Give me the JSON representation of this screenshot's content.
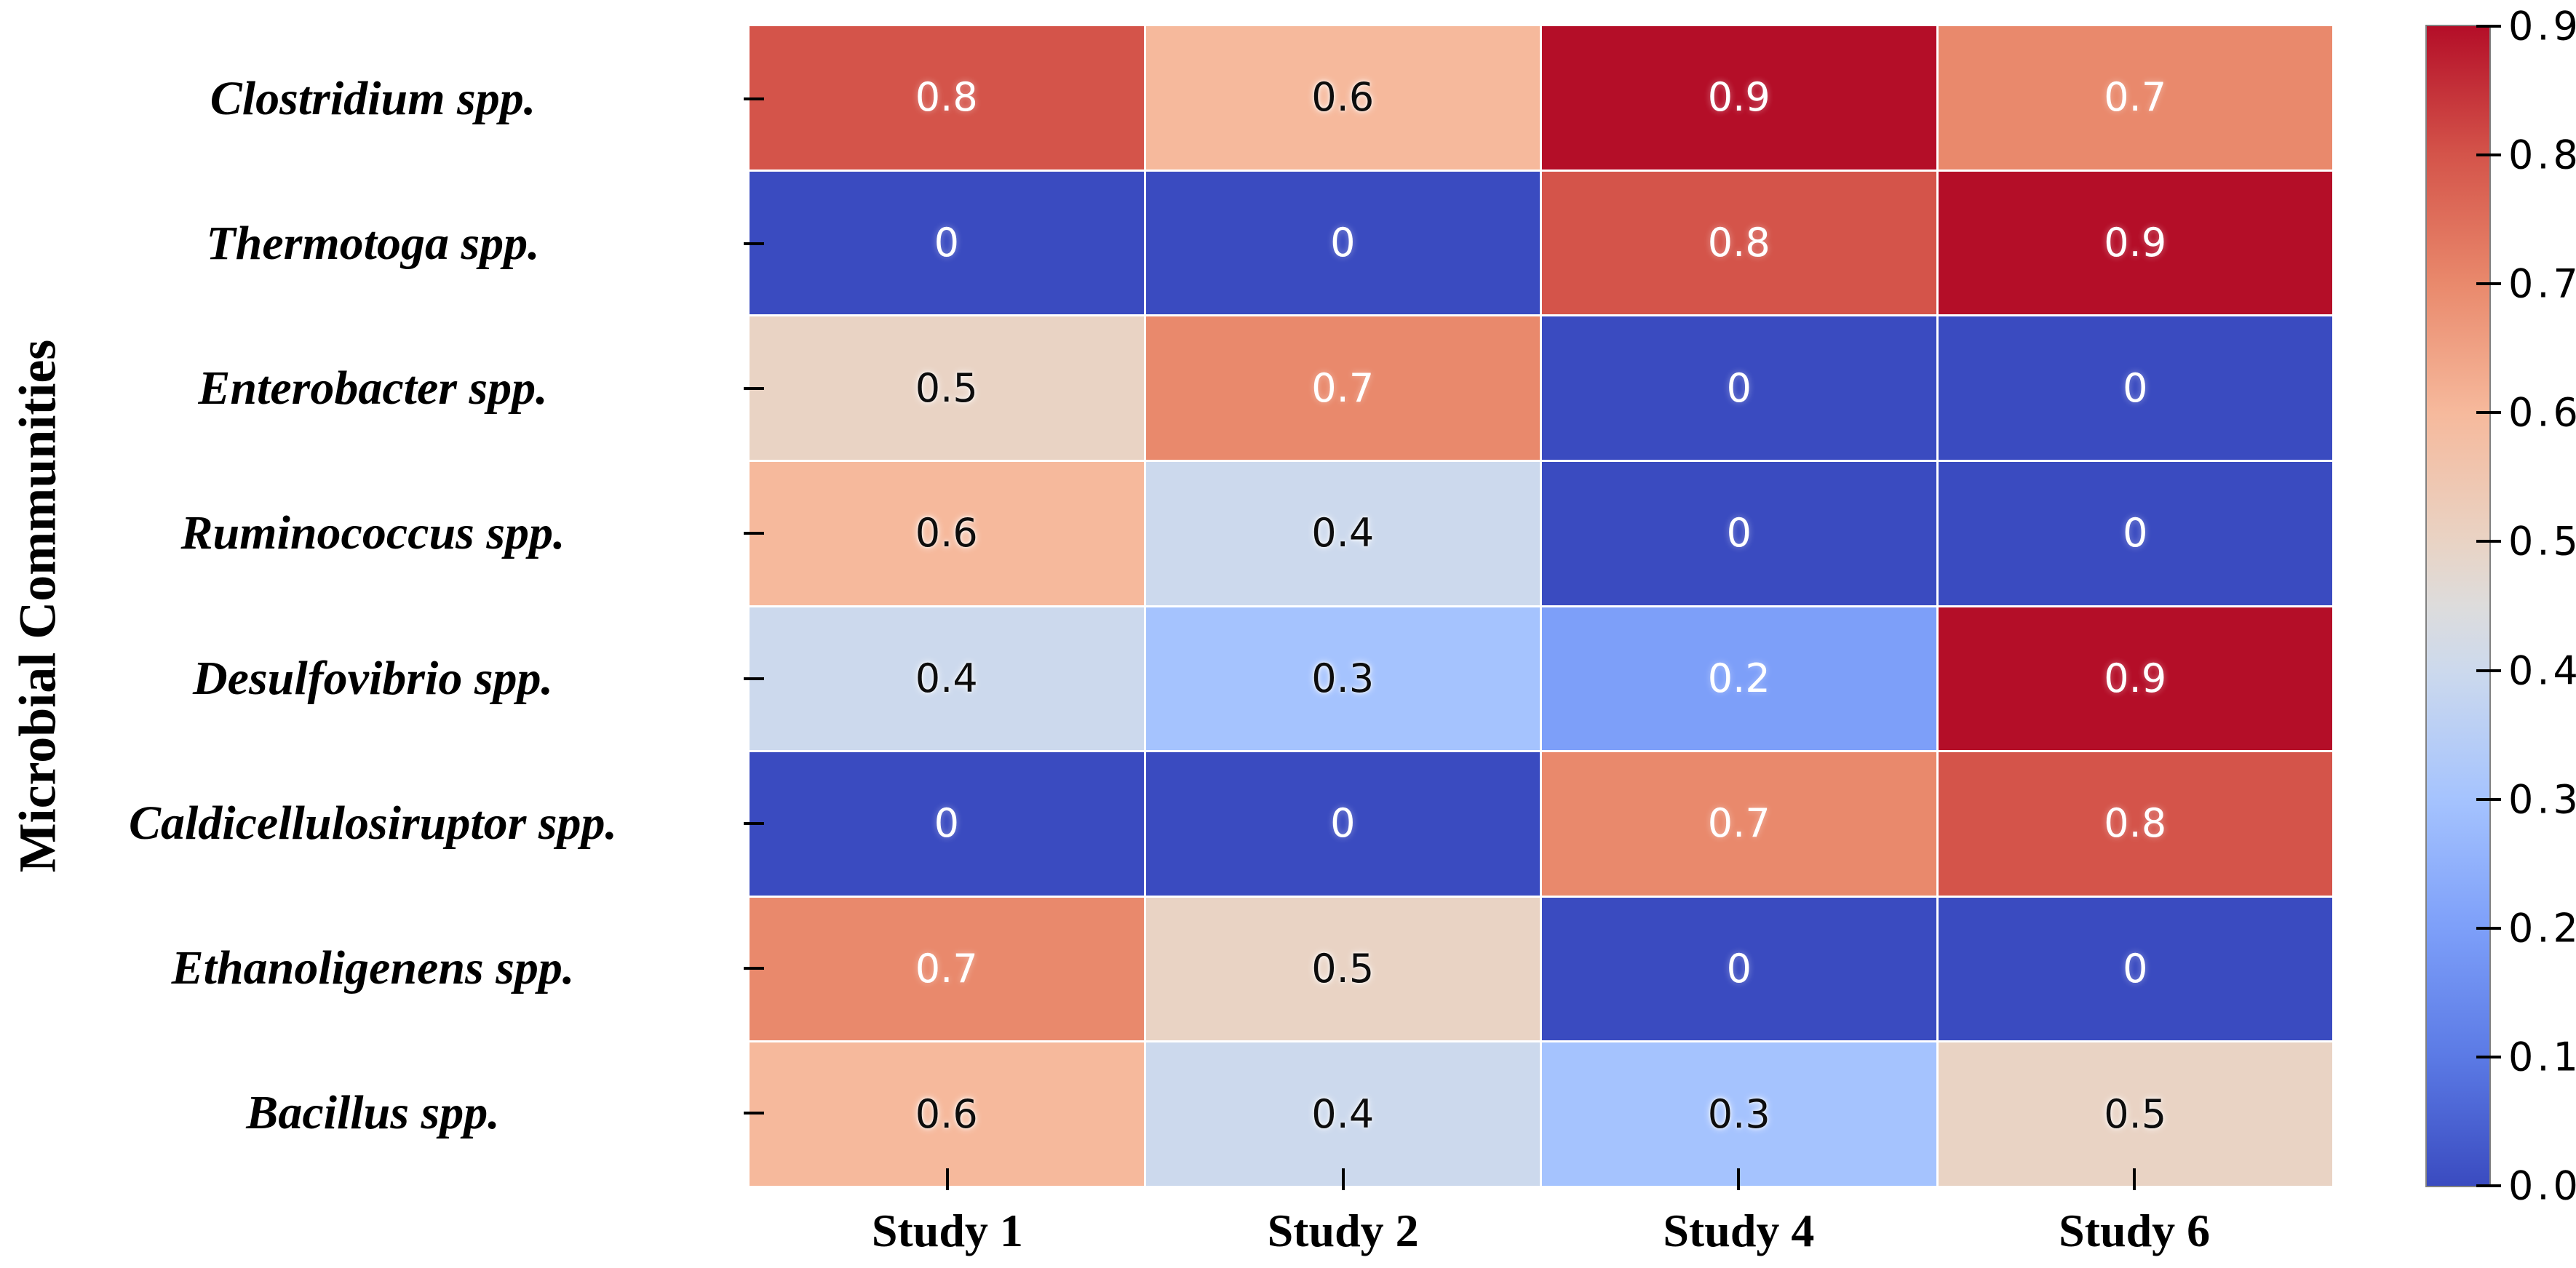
{
  "chart_data": {
    "type": "heatmap",
    "title": "",
    "xlabel": "",
    "ylabel": "Microbial Communities",
    "categories_x": [
      "Study 1",
      "Study 2",
      "Study 4",
      "Study 6"
    ],
    "categories_y": [
      "Clostridium spp.",
      "Thermotoga spp.",
      "Enterobacter spp.",
      "Ruminococcus spp.",
      "Desulfovibrio spp.",
      "Caldicellulosiruptor spp.",
      "Ethanoligenens spp.",
      "Bacillus spp."
    ],
    "values": [
      [
        0.8,
        0.6,
        0.9,
        0.7
      ],
      [
        0,
        0,
        0.8,
        0.9
      ],
      [
        0.5,
        0.7,
        0,
        0
      ],
      [
        0.6,
        0.4,
        0,
        0
      ],
      [
        0.4,
        0.3,
        0.2,
        0.9
      ],
      [
        0,
        0,
        0.7,
        0.8
      ],
      [
        0.7,
        0.5,
        0,
        0
      ],
      [
        0.6,
        0.4,
        0.3,
        0.5
      ]
    ],
    "vmin": 0.0,
    "vmax": 0.9,
    "colormap": "coolwarm",
    "grid": false,
    "legend_position": "colorbar-right",
    "colorbar_tick_labels": [
      "0.9",
      "0.8",
      "0.7",
      "0.6",
      "0.5",
      "0.4",
      "0.3",
      "0.2",
      "0.1",
      "0.0"
    ],
    "value_colors": {
      "0": "#3a4bc0",
      "0.1": "#5b7ae5",
      "0.2": "#7d9ff9",
      "0.3": "#a5c3fe",
      "0.4": "#ccd9ed",
      "0.5": "#e9d3c4",
      "0.6": "#f6b99c",
      "0.7": "#e9896c",
      "0.8": "#d4544a",
      "0.9": "#b40e28"
    },
    "gradient_stops": [
      {
        "v": 0.0,
        "color": "#3a4bc0"
      },
      {
        "v": 0.1,
        "color": "#5b7ae5"
      },
      {
        "v": 0.2,
        "color": "#7d9ff9"
      },
      {
        "v": 0.3,
        "color": "#a5c3fe"
      },
      {
        "v": 0.4,
        "color": "#ccd9ed"
      },
      {
        "v": 0.45,
        "color": "#dddcdc"
      },
      {
        "v": 0.5,
        "color": "#e9d3c4"
      },
      {
        "v": 0.6,
        "color": "#f6b99c"
      },
      {
        "v": 0.7,
        "color": "#e9896c"
      },
      {
        "v": 0.8,
        "color": "#d4544a"
      },
      {
        "v": 0.9,
        "color": "#b40e28"
      }
    ],
    "annot_text_colors": {
      "on_dark": "#ffffff",
      "on_light": "#0d0d0d"
    },
    "axis_tick_color": "#000000"
  }
}
